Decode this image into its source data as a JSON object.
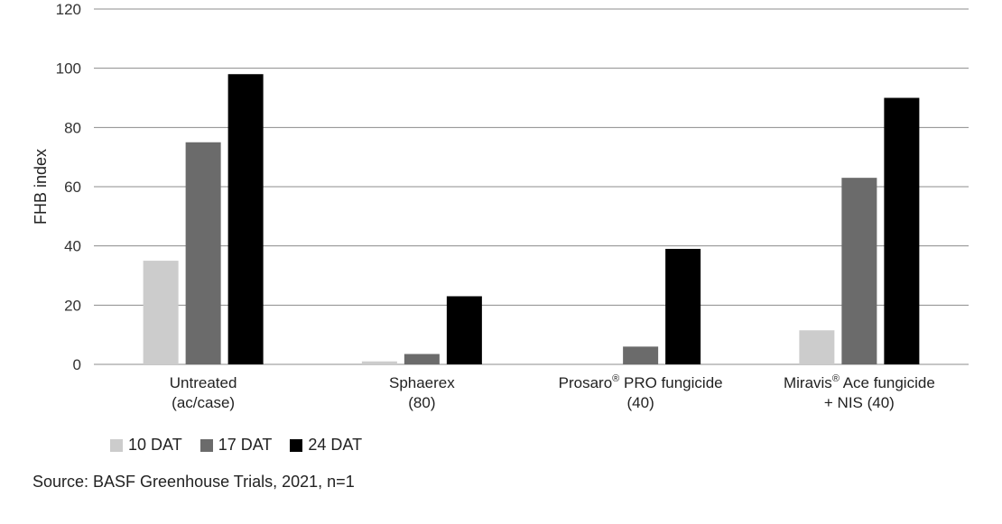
{
  "chart_data": {
    "type": "bar",
    "ylabel": "FHB index",
    "xlabel": "",
    "ylim": [
      0,
      120
    ],
    "yticks": [
      0,
      20,
      40,
      60,
      80,
      100,
      120
    ],
    "grid": true,
    "legend_position": "bottom-left",
    "categories": [
      {
        "line1": "Untreated",
        "line2": "(ac/case)",
        "reg": false
      },
      {
        "line1": "Sphaerex",
        "line2": "(80)",
        "reg": false
      },
      {
        "line1": "Prosaro",
        "line1_suffix": " PRO fungicide",
        "line2": "(40)",
        "reg": true
      },
      {
        "line1": "Miravis",
        "line1_suffix": " Ace fungicide",
        "line2": "+ NIS (40)",
        "reg": true
      }
    ],
    "series": [
      {
        "name": "10 DAT",
        "color": "#cccccc",
        "values": [
          35,
          1,
          0,
          11.5
        ]
      },
      {
        "name": "17 DAT",
        "color": "#6b6b6b",
        "values": [
          75,
          3.5,
          6,
          63
        ]
      },
      {
        "name": "24 DAT",
        "color": "#000000",
        "values": [
          98,
          23,
          39,
          90
        ]
      }
    ]
  },
  "source": "Source: BASF Greenhouse Trials, 2021, n=1"
}
